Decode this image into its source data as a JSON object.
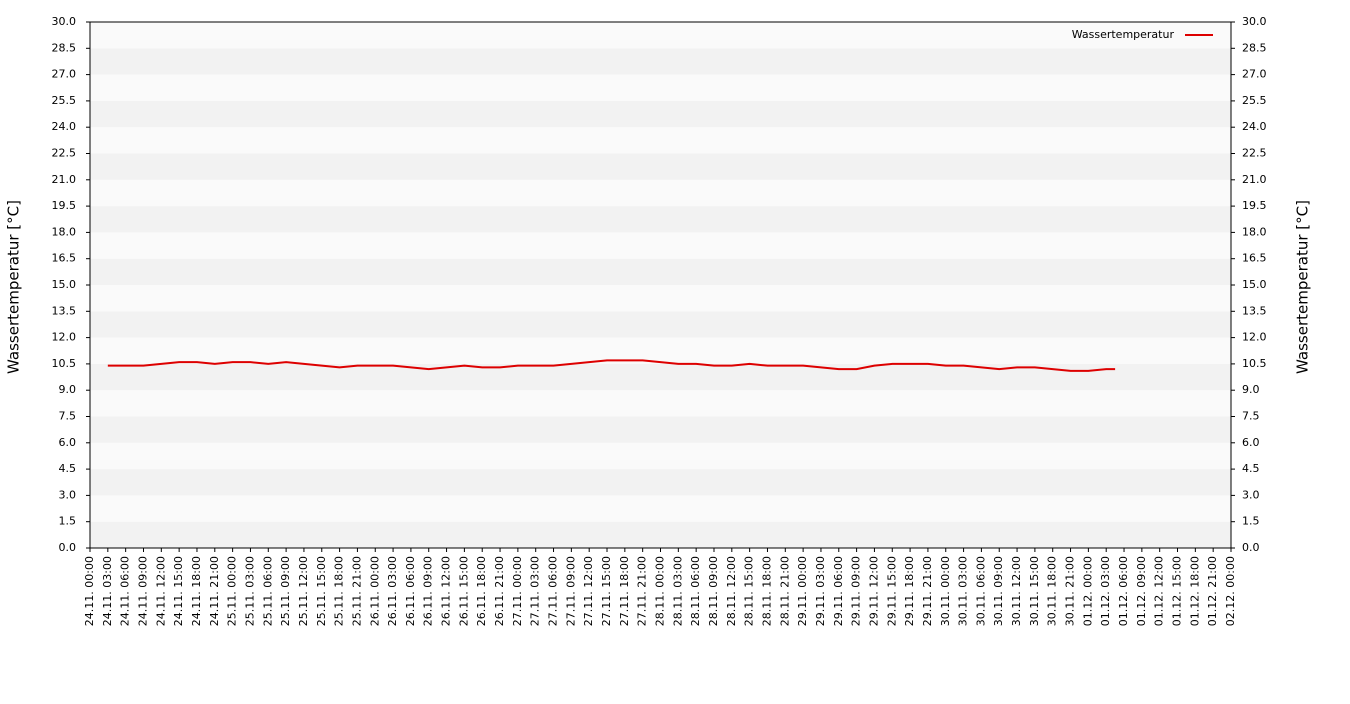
{
  "chart_data": {
    "type": "line",
    "y_label": "Wassertemperatur [°C]",
    "y2_label": "Wassertemperatur [°C]",
    "legend": "top-right",
    "grid": true,
    "ylim": [
      0,
      30
    ],
    "yticks": [
      {
        "value": 0,
        "label": "0.0"
      },
      {
        "value": 1.5,
        "label": "1.5"
      },
      {
        "value": 3,
        "label": "3.0"
      },
      {
        "value": 4.5,
        "label": "4.5"
      },
      {
        "value": 6,
        "label": "6.0"
      },
      {
        "value": 7.5,
        "label": "7.5"
      },
      {
        "value": 9,
        "label": "9.0"
      },
      {
        "value": 10.5,
        "label": "10.5"
      },
      {
        "value": 12,
        "label": "12.0"
      },
      {
        "value": 13.5,
        "label": "13.5"
      },
      {
        "value": 15,
        "label": "15.0"
      },
      {
        "value": 16.5,
        "label": "16.5"
      },
      {
        "value": 18,
        "label": "18.0"
      },
      {
        "value": 19.5,
        "label": "19.5"
      },
      {
        "value": 21,
        "label": "21.0"
      },
      {
        "value": 22.5,
        "label": "22.5"
      },
      {
        "value": 24,
        "label": "24.0"
      },
      {
        "value": 25.5,
        "label": "25.5"
      },
      {
        "value": 27,
        "label": "27.0"
      },
      {
        "value": 28.5,
        "label": "28.5"
      },
      {
        "value": 30,
        "label": "30.0"
      }
    ],
    "xlim": [
      "24.11. 00:00",
      "02.12. 00:00"
    ],
    "xticks": [
      "24.11. 00:00",
      "24.11. 03:00",
      "24.11. 06:00",
      "24.11. 09:00",
      "24.11. 12:00",
      "24.11. 15:00",
      "24.11. 18:00",
      "24.11. 21:00",
      "25.11. 00:00",
      "25.11. 03:00",
      "25.11. 06:00",
      "25.11. 09:00",
      "25.11. 12:00",
      "25.11. 15:00",
      "25.11. 18:00",
      "25.11. 21:00",
      "26.11. 00:00",
      "26.11. 03:00",
      "26.11. 06:00",
      "26.11. 09:00",
      "26.11. 12:00",
      "26.11. 15:00",
      "26.11. 18:00",
      "26.11. 21:00",
      "27.11. 00:00",
      "27.11. 03:00",
      "27.11. 06:00",
      "27.11. 09:00",
      "27.11. 12:00",
      "27.11. 15:00",
      "27.11. 18:00",
      "27.11. 21:00",
      "28.11. 00:00",
      "28.11. 03:00",
      "28.11. 06:00",
      "28.11. 09:00",
      "28.11. 12:00",
      "28.11. 15:00",
      "28.11. 18:00",
      "28.11. 21:00",
      "29.11. 00:00",
      "29.11. 03:00",
      "29.11. 06:00",
      "29.11. 09:00",
      "29.11. 12:00",
      "29.11. 15:00",
      "29.11. 18:00",
      "29.11. 21:00",
      "30.11. 00:00",
      "30.11. 03:00",
      "30.11. 06:00",
      "30.11. 09:00",
      "30.11. 12:00",
      "30.11. 15:00",
      "30.11. 18:00",
      "30.11. 21:00",
      "01.12. 00:00",
      "01.12. 03:00",
      "01.12. 06:00",
      "01.12. 09:00",
      "01.12. 12:00",
      "01.12. 15:00",
      "01.12. 18:00",
      "01.12. 21:00",
      "02.12. 00:00"
    ],
    "x": [
      "24.11. 03:00",
      "24.11. 06:00",
      "24.11. 09:00",
      "24.11. 12:00",
      "24.11. 15:00",
      "24.11. 18:00",
      "24.11. 21:00",
      "25.11. 00:00",
      "25.11. 03:00",
      "25.11. 06:00",
      "25.11. 09:00",
      "25.11. 12:00",
      "25.11. 15:00",
      "25.11. 18:00",
      "25.11. 21:00",
      "26.11. 00:00",
      "26.11. 03:00",
      "26.11. 06:00",
      "26.11. 09:00",
      "26.11. 12:00",
      "26.11. 15:00",
      "26.11. 18:00",
      "26.11. 21:00",
      "27.11. 00:00",
      "27.11. 03:00",
      "27.11. 06:00",
      "27.11. 09:00",
      "27.11. 12:00",
      "27.11. 15:00",
      "27.11. 18:00",
      "27.11. 21:00",
      "28.11. 00:00",
      "28.11. 03:00",
      "28.11. 06:00",
      "28.11. 09:00",
      "28.11. 12:00",
      "28.11. 15:00",
      "28.11. 18:00",
      "28.11. 21:00",
      "29.11. 00:00",
      "29.11. 03:00",
      "29.11. 06:00",
      "29.11. 09:00",
      "29.11. 12:00",
      "29.11. 15:00",
      "29.11. 18:00",
      "29.11. 21:00",
      "30.11. 00:00",
      "30.11. 03:00",
      "30.11. 06:00",
      "30.11. 09:00",
      "30.11. 12:00",
      "30.11. 15:00",
      "30.11. 18:00",
      "30.11. 21:00",
      "01.12. 00:00",
      "01.12. 03:00",
      "01.12. 04:30"
    ],
    "series": [
      {
        "name": "Wassertemperatur",
        "color": "#dd0000",
        "values": [
          10.4,
          10.4,
          10.4,
          10.5,
          10.6,
          10.6,
          10.5,
          10.6,
          10.6,
          10.5,
          10.6,
          10.5,
          10.4,
          10.3,
          10.4,
          10.4,
          10.4,
          10.3,
          10.2,
          10.3,
          10.4,
          10.3,
          10.3,
          10.4,
          10.4,
          10.4,
          10.5,
          10.6,
          10.7,
          10.7,
          10.7,
          10.6,
          10.5,
          10.5,
          10.4,
          10.4,
          10.5,
          10.4,
          10.4,
          10.4,
          10.3,
          10.2,
          10.2,
          10.4,
          10.5,
          10.5,
          10.5,
          10.4,
          10.4,
          10.3,
          10.2,
          10.3,
          10.3,
          10.2,
          10.1,
          10.1,
          10.2,
          10.2
        ]
      }
    ]
  }
}
